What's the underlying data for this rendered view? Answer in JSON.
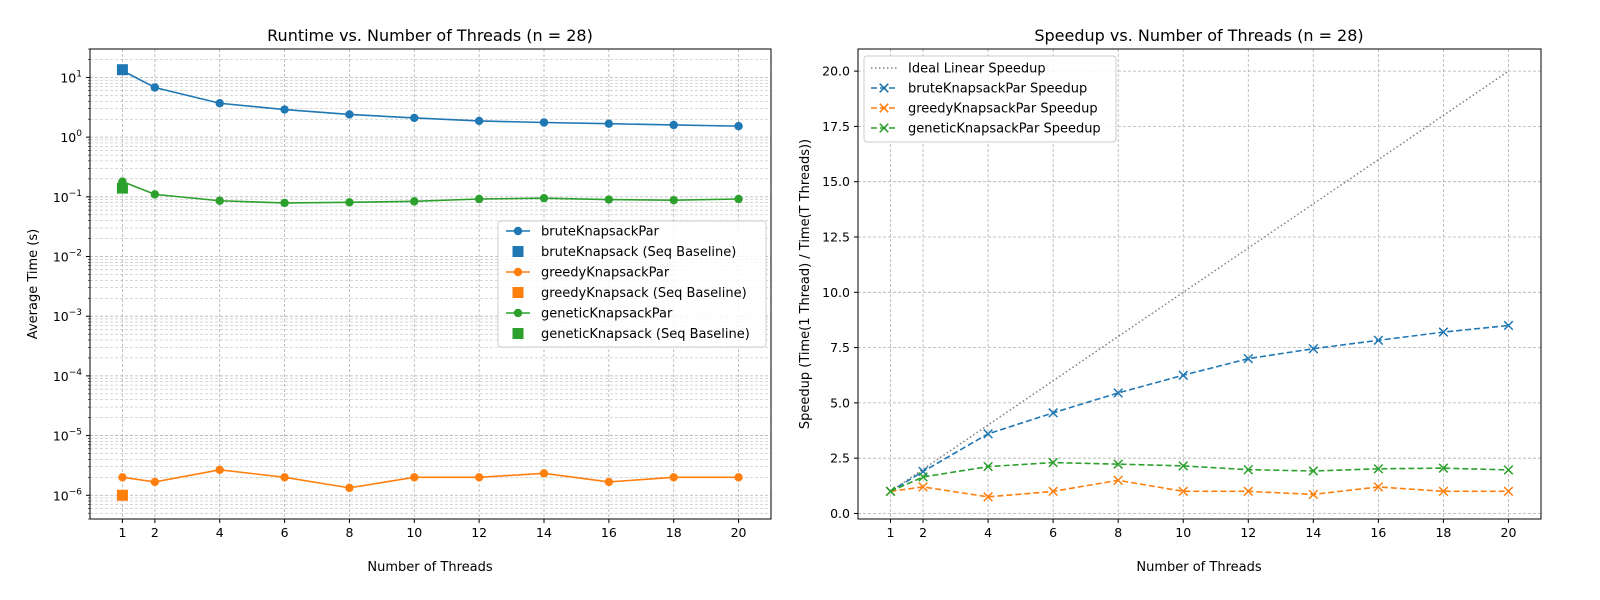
{
  "chart_data": [
    {
      "type": "line",
      "title": "Runtime vs. Number of Threads (n = 28)",
      "xlabel": "Number of Threads",
      "ylabel": "Average Time (s)",
      "yscale": "log",
      "xlim": [
        0,
        21
      ],
      "ylim": [
        4e-07,
        30
      ],
      "x_ticks": [
        1,
        2,
        4,
        6,
        8,
        10,
        12,
        14,
        16,
        18,
        20
      ],
      "x_tick_labels": [
        "1",
        "2",
        "4",
        "6",
        "8",
        "10",
        "12",
        "14",
        "16",
        "18",
        "20"
      ],
      "y_ticks": [
        {
          "value": 1e-06,
          "base": "10",
          "exp": "−6"
        },
        {
          "value": 1e-05,
          "base": "10",
          "exp": "−5"
        },
        {
          "value": 0.0001,
          "base": "10",
          "exp": "−4"
        },
        {
          "value": 0.001,
          "base": "10",
          "exp": "−3"
        },
        {
          "value": 0.01,
          "base": "10",
          "exp": "−2"
        },
        {
          "value": 0.1,
          "base": "10",
          "exp": "−1"
        },
        {
          "value": 1,
          "base": "10",
          "exp": "0"
        },
        {
          "value": 10,
          "base": "10",
          "exp": "1"
        }
      ],
      "grid": true,
      "legend_position": "center-right",
      "series": [
        {
          "name": "bruteKnapsackPar",
          "color": "#1f77b4",
          "marker": "circle",
          "line": "solid",
          "x": [
            1,
            2,
            4,
            6,
            8,
            10,
            12,
            14,
            16,
            18,
            20
          ],
          "y": [
            13.0,
            6.8,
            3.7,
            2.9,
            2.4,
            2.1,
            1.87,
            1.76,
            1.68,
            1.6,
            1.53
          ]
        },
        {
          "name": "bruteKnapsack (Seq Baseline)",
          "color": "#1f77b4",
          "marker": "square",
          "line": "none",
          "x": [
            1
          ],
          "y": [
            13.5
          ]
        },
        {
          "name": "greedyKnapsackPar",
          "color": "#ff7f0e",
          "marker": "circle",
          "line": "solid",
          "x": [
            1,
            2,
            4,
            6,
            8,
            10,
            12,
            14,
            16,
            18,
            20
          ],
          "y": [
            2e-06,
            1.67e-06,
            2.67e-06,
            2e-06,
            1.33e-06,
            2e-06,
            2e-06,
            2.33e-06,
            1.67e-06,
            2e-06,
            2e-06
          ]
        },
        {
          "name": "greedyKnapsack (Seq Baseline)",
          "color": "#ff7f0e",
          "marker": "square",
          "line": "none",
          "x": [
            1
          ],
          "y": [
            1e-06
          ]
        },
        {
          "name": "geneticKnapsackPar",
          "color": "#2ca02c",
          "marker": "circle",
          "line": "solid",
          "x": [
            1,
            2,
            4,
            6,
            8,
            10,
            12,
            14,
            16,
            18,
            20
          ],
          "y": [
            0.18,
            0.11,
            0.086,
            0.079,
            0.081,
            0.084,
            0.092,
            0.095,
            0.09,
            0.088,
            0.092
          ]
        },
        {
          "name": "geneticKnapsack (Seq Baseline)",
          "color": "#2ca02c",
          "marker": "square",
          "line": "none",
          "x": [
            1
          ],
          "y": [
            0.14
          ]
        }
      ]
    },
    {
      "type": "line",
      "title": "Speedup vs. Number of Threads (n = 28)",
      "xlabel": "Number of Threads",
      "ylabel": "Speedup (Time(1 Thread) / Time(T Threads))",
      "xlim": [
        0,
        21
      ],
      "ylim": [
        -0.25,
        21
      ],
      "x_ticks": [
        1,
        2,
        4,
        6,
        8,
        10,
        12,
        14,
        16,
        18,
        20
      ],
      "x_tick_labels": [
        "1",
        "2",
        "4",
        "6",
        "8",
        "10",
        "12",
        "14",
        "16",
        "18",
        "20"
      ],
      "y_ticks": [
        0,
        2.5,
        5,
        7.5,
        10,
        12.5,
        15,
        17.5,
        20
      ],
      "y_tick_labels": [
        "0.0",
        "2.5",
        "5.0",
        "7.5",
        "10.0",
        "12.5",
        "15.0",
        "17.5",
        "20.0"
      ],
      "grid": true,
      "legend_position": "top-left",
      "series": [
        {
          "name": "Ideal Linear Speedup",
          "color": "#808080",
          "marker": "none",
          "line": "dotted",
          "x": [
            1,
            20
          ],
          "y": [
            1,
            20
          ]
        },
        {
          "name": "bruteKnapsackPar Speedup",
          "color": "#1f77b4",
          "marker": "x",
          "line": "dashed",
          "x": [
            1,
            2,
            4,
            6,
            8,
            10,
            12,
            14,
            16,
            18,
            20
          ],
          "y": [
            1.0,
            1.9,
            3.6,
            4.55,
            5.45,
            6.25,
            7.0,
            7.45,
            7.83,
            8.2,
            8.5
          ]
        },
        {
          "name": "greedyKnapsackPar Speedup",
          "color": "#ff7f0e",
          "marker": "x",
          "line": "dashed",
          "x": [
            1,
            2,
            4,
            6,
            8,
            10,
            12,
            14,
            16,
            18,
            20
          ],
          "y": [
            1.0,
            1.2,
            0.75,
            1.0,
            1.5,
            1.0,
            1.0,
            0.86,
            1.2,
            1.0,
            1.0
          ]
        },
        {
          "name": "geneticKnapsackPar Speedup",
          "color": "#2ca02c",
          "marker": "x",
          "line": "dashed",
          "x": [
            1,
            2,
            4,
            6,
            8,
            10,
            12,
            14,
            16,
            18,
            20
          ],
          "y": [
            1.0,
            1.65,
            2.12,
            2.3,
            2.23,
            2.15,
            1.98,
            1.92,
            2.02,
            2.05,
            1.97
          ]
        }
      ]
    }
  ]
}
